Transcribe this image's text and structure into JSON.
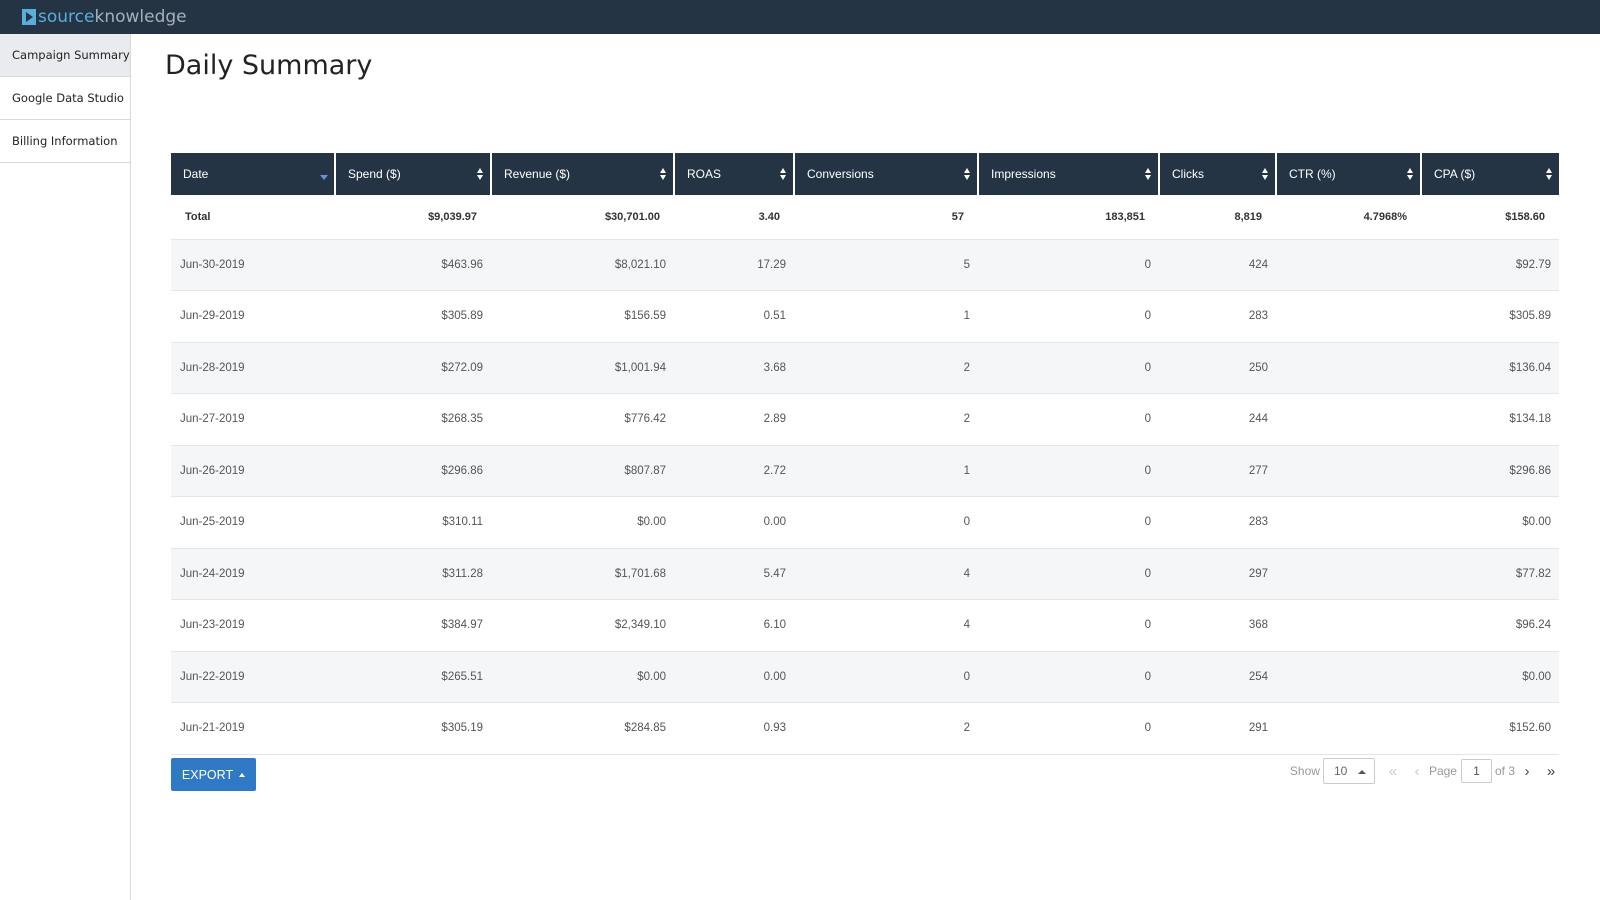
{
  "brand": {
    "part1": "source",
    "part2": "knowledge"
  },
  "sidebar": {
    "items": [
      {
        "label": "Campaign Summary",
        "active": true
      },
      {
        "label": "Google Data Studio",
        "active": false
      },
      {
        "label": "Billing Information",
        "active": false
      }
    ]
  },
  "page": {
    "title": "Daily Summary"
  },
  "table": {
    "columns": [
      "Date",
      "Spend ($)",
      "Revenue ($)",
      "ROAS",
      "Conversions",
      "Impressions",
      "Clicks",
      "CTR (%)",
      "CPA ($)"
    ],
    "total": [
      "Total",
      "$9,039.97",
      "$30,701.00",
      "3.40",
      "57",
      "183,851",
      "8,819",
      "4.7968%",
      "$158.60"
    ],
    "rows": [
      [
        "Jun-30-2019",
        "$463.96",
        "$8,021.10",
        "17.29",
        "5",
        "0",
        "424",
        "",
        "$92.79"
      ],
      [
        "Jun-29-2019",
        "$305.89",
        "$156.59",
        "0.51",
        "1",
        "0",
        "283",
        "",
        "$305.89"
      ],
      [
        "Jun-28-2019",
        "$272.09",
        "$1,001.94",
        "3.68",
        "2",
        "0",
        "250",
        "",
        "$136.04"
      ],
      [
        "Jun-27-2019",
        "$268.35",
        "$776.42",
        "2.89",
        "2",
        "0",
        "244",
        "",
        "$134.18"
      ],
      [
        "Jun-26-2019",
        "$296.86",
        "$807.87",
        "2.72",
        "1",
        "0",
        "277",
        "",
        "$296.86"
      ],
      [
        "Jun-25-2019",
        "$310.11",
        "$0.00",
        "0.00",
        "0",
        "0",
        "283",
        "",
        "$0.00"
      ],
      [
        "Jun-24-2019",
        "$311.28",
        "$1,701.68",
        "5.47",
        "4",
        "0",
        "297",
        "",
        "$77.82"
      ],
      [
        "Jun-23-2019",
        "$384.97",
        "$2,349.10",
        "6.10",
        "4",
        "0",
        "368",
        "",
        "$96.24"
      ],
      [
        "Jun-22-2019",
        "$265.51",
        "$0.00",
        "0.00",
        "0",
        "0",
        "254",
        "",
        "$0.00"
      ],
      [
        "Jun-21-2019",
        "$305.19",
        "$284.85",
        "0.93",
        "2",
        "0",
        "291",
        "",
        "$152.60"
      ]
    ]
  },
  "export": {
    "label": "EXPORT"
  },
  "pagination": {
    "show_label": "Show",
    "page_size": "10",
    "page_label": "Page",
    "current_page": "1",
    "of_label": "of 3"
  }
}
